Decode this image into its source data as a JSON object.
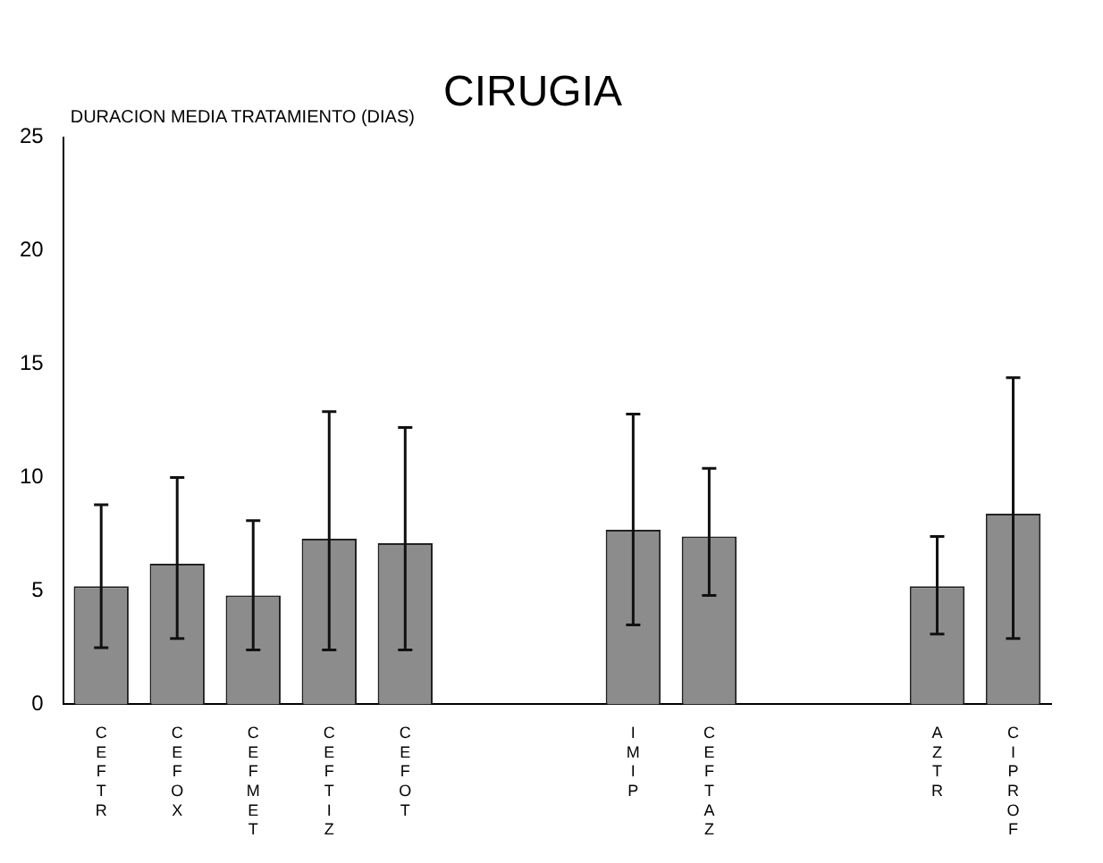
{
  "chart_data": {
    "type": "bar",
    "title": "CIRUGIA",
    "ylabel": "DURACION MEDIA TRATAMIENTO (DIAS)",
    "categories": [
      "CEFTR",
      "CEFOX",
      "CEFMET",
      "CEFTIZ",
      "CEFOT",
      null,
      null,
      "IMIP",
      "CEFTAZ",
      null,
      null,
      "AZTR",
      "CIPROF"
    ],
    "values": [
      5.2,
      6.2,
      4.8,
      7.3,
      7.1,
      null,
      null,
      7.7,
      7.4,
      null,
      null,
      5.2,
      8.4
    ],
    "errors": [
      [
        2.5,
        8.8
      ],
      [
        2.9,
        10
      ],
      [
        2.4,
        8.1
      ],
      [
        2.4,
        12.9
      ],
      [
        2.4,
        12.2
      ],
      null,
      null,
      [
        3.5,
        12.8
      ],
      [
        4.8,
        10.4
      ],
      null,
      null,
      [
        3.1,
        7.4
      ],
      [
        2.9,
        14.4
      ]
    ],
    "color": "#8c8c8c",
    "ylim": [
      0,
      25
    ],
    "yticks": [
      0,
      5,
      10,
      15,
      20,
      25
    ],
    "grid": false,
    "legend": false
  }
}
